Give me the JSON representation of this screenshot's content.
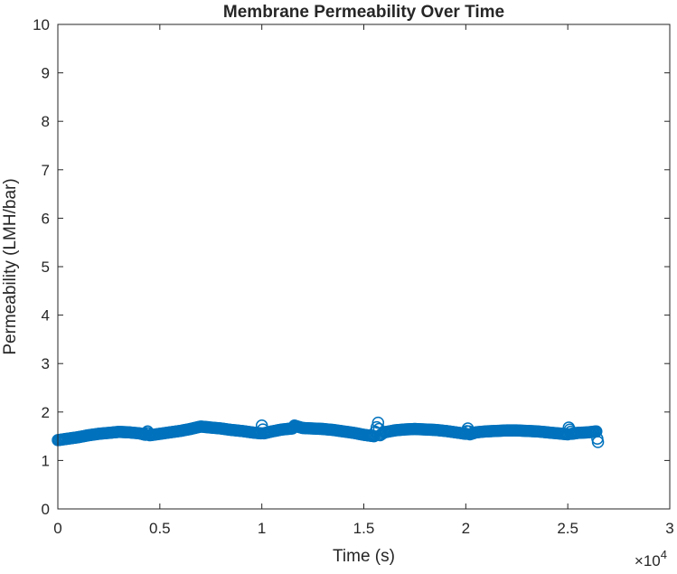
{
  "chart_data": {
    "type": "scatter",
    "title": "Membrane Permeability Over Time",
    "xlabel": "Time (s)",
    "ylabel": "Permeability (LMH/bar)",
    "xlim": [
      0,
      30000
    ],
    "ylim": [
      0,
      10
    ],
    "x_exponent_label": "×10",
    "x_exponent_power": "4",
    "x_ticks": [
      {
        "value": 0,
        "label": "0"
      },
      {
        "value": 5000,
        "label": "0.5"
      },
      {
        "value": 10000,
        "label": "1"
      },
      {
        "value": 15000,
        "label": "1.5"
      },
      {
        "value": 20000,
        "label": "2"
      },
      {
        "value": 25000,
        "label": "2.5"
      },
      {
        "value": 30000,
        "label": "3"
      }
    ],
    "y_ticks": [
      {
        "value": 0,
        "label": "0"
      },
      {
        "value": 1,
        "label": "1"
      },
      {
        "value": 2,
        "label": "2"
      },
      {
        "value": 3,
        "label": "3"
      },
      {
        "value": 4,
        "label": "4"
      },
      {
        "value": 5,
        "label": "5"
      },
      {
        "value": 6,
        "label": "6"
      },
      {
        "value": 7,
        "label": "7"
      },
      {
        "value": 8,
        "label": "8"
      },
      {
        "value": 9,
        "label": "9"
      },
      {
        "value": 10,
        "label": "10"
      }
    ],
    "grid": false,
    "marker": "circle",
    "marker_color": "#0072BD",
    "series": [
      {
        "x": [
          0,
          500,
          1000,
          1500,
          2000,
          2500,
          3000,
          3500,
          4000,
          4300,
          4400,
          4500,
          5000,
          5500,
          6000,
          6500,
          7000,
          7500,
          8000,
          8500,
          9000,
          9500,
          9950,
          10000,
          10100,
          10500,
          11000,
          11500,
          11600,
          12000,
          12500,
          13000,
          13500,
          14000,
          14500,
          15000,
          15500,
          15700,
          15750,
          15800,
          16000,
          16500,
          17000,
          17500,
          18000,
          18500,
          19000,
          19500,
          20000,
          20100,
          20200,
          20500,
          21000,
          21500,
          22000,
          22500,
          23000,
          23500,
          24000,
          24500,
          25000,
          25050,
          25200,
          25500,
          26000,
          26400,
          26450,
          26480
        ],
        "y": [
          1.42,
          1.45,
          1.48,
          1.52,
          1.55,
          1.57,
          1.59,
          1.58,
          1.56,
          1.53,
          1.6,
          1.52,
          1.55,
          1.58,
          1.61,
          1.65,
          1.7,
          1.68,
          1.66,
          1.63,
          1.61,
          1.58,
          1.56,
          1.72,
          1.56,
          1.6,
          1.64,
          1.66,
          1.72,
          1.67,
          1.66,
          1.65,
          1.63,
          1.6,
          1.57,
          1.53,
          1.5,
          1.78,
          1.65,
          1.52,
          1.58,
          1.62,
          1.64,
          1.65,
          1.64,
          1.63,
          1.61,
          1.58,
          1.55,
          1.66,
          1.54,
          1.58,
          1.6,
          1.61,
          1.62,
          1.62,
          1.61,
          1.6,
          1.58,
          1.56,
          1.54,
          1.68,
          1.55,
          1.57,
          1.58,
          1.6,
          1.45,
          1.38
        ]
      }
    ]
  }
}
